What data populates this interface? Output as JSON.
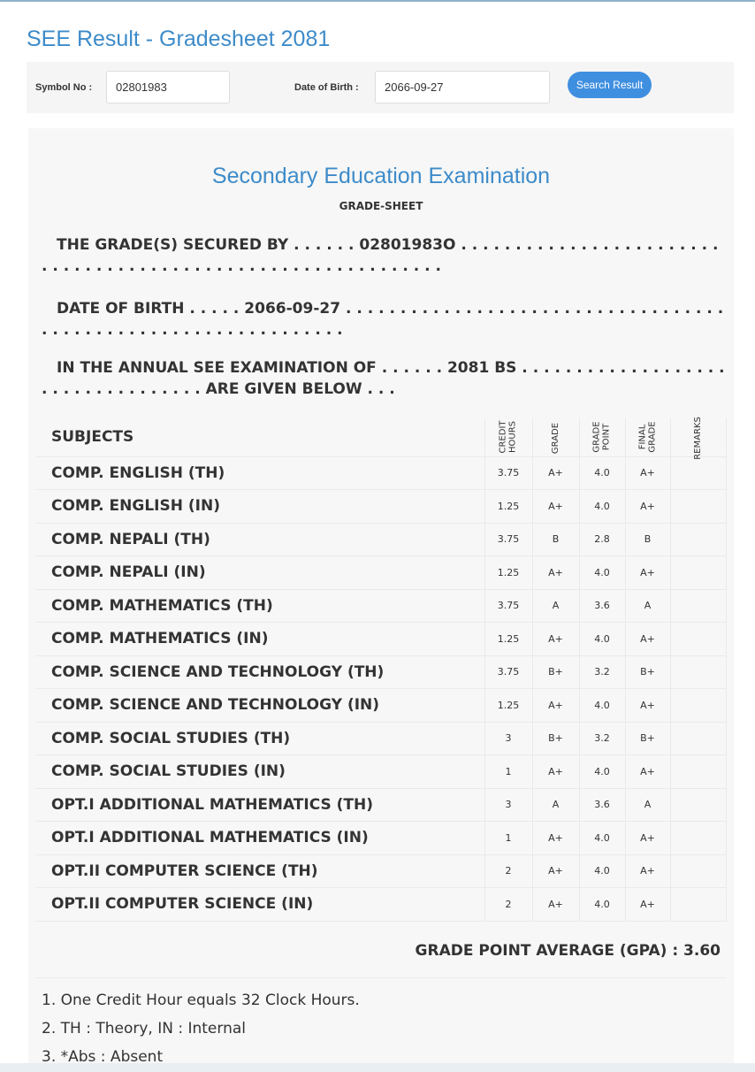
{
  "page_title": "SEE Result - Gradesheet 2081",
  "form": {
    "symbol_label": "Symbol No :",
    "symbol_value": "02801983",
    "dob_label": "Date of Birth :",
    "dob_value": "2066-09-27",
    "search_label": "Search Result"
  },
  "sheet": {
    "title": "Secondary Education Examination",
    "subtitle": "GRADE-SHEET",
    "secured_line": "THE GRADE(S) SECURED BY . . . . . . 02801983O . . . . . . . . . . . . . . . . . . . . . . . . . . . . . . . . . . . . . . . . . . . . . . . . . . . . . . . . . . . . .",
    "dob_line": "DATE OF BIRTH . . . . . 2066-09-27 . . . . . . . . . . . . . . . . . . . . . . . . . . . . . . . . . . . . . . . . . . . . . . . . . . . . . . . . . . . . . . .",
    "exam_line": "IN THE ANNUAL SEE EXAMINATION OF . . . . . . 2081 BS . . . . . . . . . . . . . . . . . . . . . . . . . . . . . . . . . . ARE GIVEN BELOW . . .",
    "headers": {
      "subjects": "SUBJECTS",
      "credit": "CREDIT\nHOURS",
      "grade": "GRADE",
      "point": "GRADE\nPOINT",
      "final": "FINAL\nGRADE",
      "remarks": "REMARKS"
    },
    "rows": [
      [
        "COMP. ENGLISH (TH)",
        "3.75",
        "A+",
        "4.0",
        "A+"
      ],
      [
        "COMP. ENGLISH (IN)",
        "1.25",
        "A+",
        "4.0",
        "A+"
      ],
      [
        "COMP. NEPALI (TH)",
        "3.75",
        "B",
        "2.8",
        "B"
      ],
      [
        "COMP. NEPALI (IN)",
        "1.25",
        "A+",
        "4.0",
        "A+"
      ],
      [
        "COMP. MATHEMATICS (TH)",
        "3.75",
        "A",
        "3.6",
        "A"
      ],
      [
        "COMP. MATHEMATICS (IN)",
        "1.25",
        "A+",
        "4.0",
        "A+"
      ],
      [
        "COMP. SCIENCE AND TECHNOLOGY (TH)",
        "3.75",
        "B+",
        "3.2",
        "B+"
      ],
      [
        "COMP. SCIENCE AND TECHNOLOGY (IN)",
        "1.25",
        "A+",
        "4.0",
        "A+"
      ],
      [
        "COMP. SOCIAL STUDIES (TH)",
        "3",
        "B+",
        "3.2",
        "B+"
      ],
      [
        "COMP. SOCIAL STUDIES (IN)",
        "1",
        "A+",
        "4.0",
        "A+"
      ],
      [
        "OPT.I ADDITIONAL MATHEMATICS (TH)",
        "3",
        "A",
        "3.6",
        "A"
      ],
      [
        "OPT.I ADDITIONAL MATHEMATICS (IN)",
        "1",
        "A+",
        "4.0",
        "A+"
      ],
      [
        "OPT.II COMPUTER SCIENCE (TH)",
        "2",
        "A+",
        "4.0",
        "A+"
      ],
      [
        "OPT.II COMPUTER SCIENCE (IN)",
        "2",
        "A+",
        "4.0",
        "A+"
      ]
    ],
    "gpa": "GRADE POINT AVERAGE (GPA) : 3.60",
    "notes": [
      "1. One Credit Hour equals 32 Clock Hours.",
      "2. TH : Theory, IN : Internal",
      "3. *Abs : Absent"
    ]
  }
}
